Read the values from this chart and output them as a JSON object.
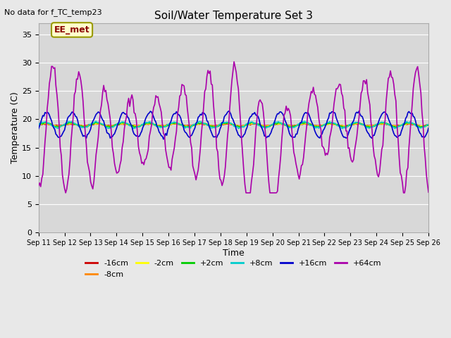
{
  "title": "Soil/Water Temperature Set 3",
  "xlabel": "Time",
  "ylabel": "Temperature (C)",
  "top_left_text": "No data for f_TC_temp23",
  "annotation_box": "EE_met",
  "ylim": [
    0,
    37
  ],
  "yticks": [
    0,
    5,
    10,
    15,
    20,
    25,
    30,
    35
  ],
  "date_start": 11,
  "date_end": 26,
  "series_colors": {
    "-16cm": "#cc0000",
    "-8cm": "#ff8800",
    "-2cm": "#ffff00",
    "+2cm": "#00cc00",
    "+8cm": "#00cccc",
    "+16cm": "#0000cc",
    "+64cm": "#aa00aa"
  },
  "legend_order": [
    "-16cm",
    "-8cm",
    "-2cm",
    "+2cm",
    "+8cm",
    "+16cm",
    "+64cm"
  ],
  "fig_bg_color": "#e8e8e8",
  "plot_bg_color": "#d8d8d8",
  "grid_color": "#ffffff"
}
